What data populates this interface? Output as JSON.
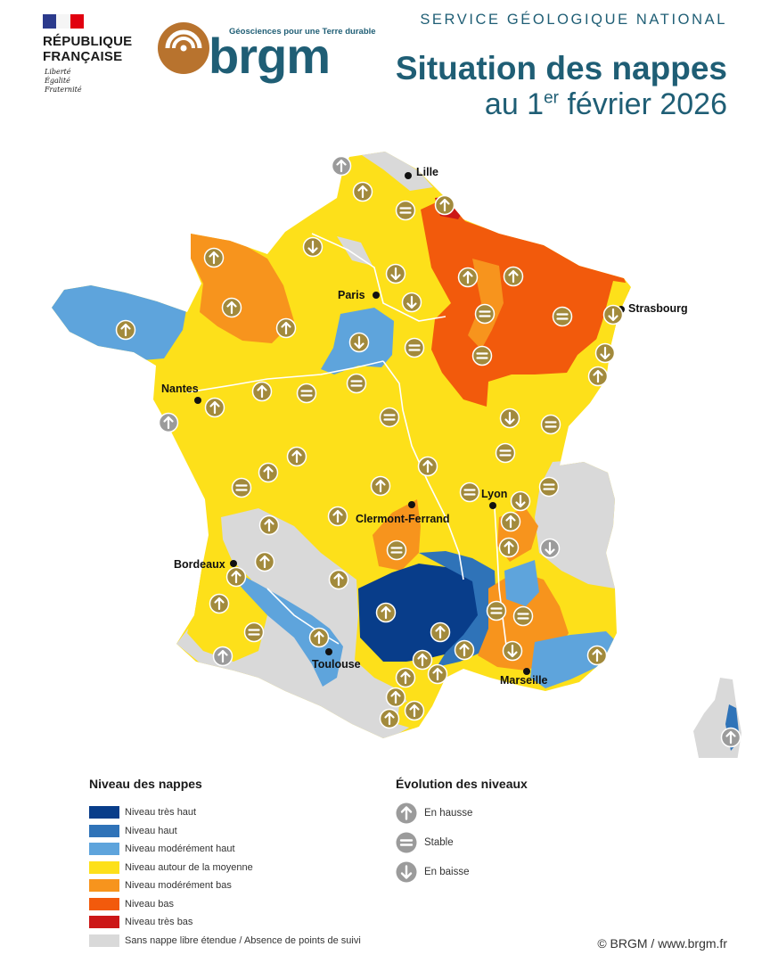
{
  "header": {
    "republic_line1": "RÉPUBLIQUE",
    "republic_line2": "FRANÇAISE",
    "motto": [
      "Liberté",
      "Égalité",
      "Fraternité"
    ],
    "brgm_tagline": "Géosciences pour une Terre durable",
    "brgm_word": "brgm",
    "service": "SERVICE GÉOLOGIQUE NATIONAL",
    "title": "Situation des nappes",
    "subtitle_prefix": "au 1",
    "subtitle_sup": "er",
    "subtitle_suffix": " février 2026"
  },
  "colors": {
    "tres_haut": "#083d8a",
    "haut": "#2f73b8",
    "moderement_haut": "#5ea4dc",
    "moyenne": "#fde01a",
    "moderement_bas": "#f7941d",
    "bas": "#f25a0c",
    "tres_bas": "#cc1717",
    "sans_nappe": "#d9d9d9",
    "brand": "#1f5e75",
    "logo_mark": "#b8732e"
  },
  "cities": {
    "lille": "Lille",
    "paris": "Paris",
    "strasbourg": "Strasbourg",
    "nantes": "Nantes",
    "lyon": "Lyon",
    "clermont": "Clermont-Ferrand",
    "bordeaux": "Bordeaux",
    "toulouse": "Toulouse",
    "marseille": "Marseille"
  },
  "legend": {
    "title": "Niveau des nappes",
    "items": [
      "Niveau très haut",
      "Niveau haut",
      "Niveau modérément haut",
      "Niveau autour de la moyenne",
      "Niveau modérément bas",
      "Niveau bas",
      "Niveau très bas",
      "Sans nappe libre étendue / Absence de points de suivi"
    ]
  },
  "evolution": {
    "title": "Évolution des niveaux",
    "up": "En hausse",
    "stable": "Stable",
    "down": "En baisse"
  },
  "credit": "© BRGM / www.brgm.fr"
}
